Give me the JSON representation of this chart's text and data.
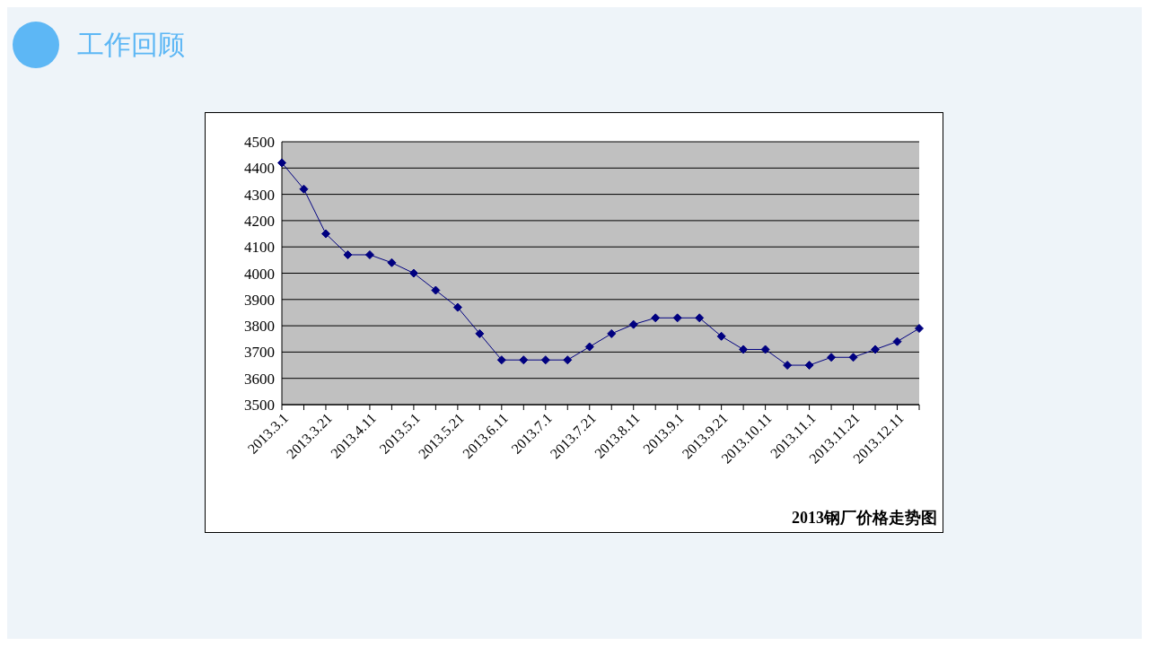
{
  "chart_data": {
    "type": "line",
    "title": "工作回顾",
    "annotations": [
      "2013钢厂价格走势图"
    ],
    "categories": [
      "2013.3.1",
      null,
      "2013.3.21",
      null,
      "2013.4.11",
      null,
      "2013.5.1",
      null,
      "2013.5.21",
      null,
      "2013.6.11",
      null,
      "2013.7.1",
      null,
      "2013.7.21",
      null,
      "2013.8.11",
      null,
      "2013.9.1",
      null,
      "2013.9.21",
      null,
      "2013.10.11",
      null,
      "2013.11.1",
      null,
      "2013.11.21",
      null,
      "2013.12.11",
      null
    ],
    "series": [
      {
        "color": "#000080",
        "values": [
          4420,
          4320,
          4150,
          4070,
          4070,
          4040,
          4000,
          3935,
          3870,
          3770,
          3670,
          3670,
          3670,
          3670,
          3720,
          3770,
          3805,
          3830,
          3830,
          3830,
          3760,
          3710,
          3710,
          3650,
          3650,
          3680,
          3680,
          3710,
          3740,
          3790
        ]
      }
    ],
    "ylim": [
      3500,
      4500
    ],
    "yticks": [
      3500,
      3600,
      3700,
      3800,
      3900,
      4000,
      4100,
      4200,
      4300,
      4400,
      4500
    ],
    "grid": "y",
    "marker": "diamond",
    "line_style": "solid"
  }
}
